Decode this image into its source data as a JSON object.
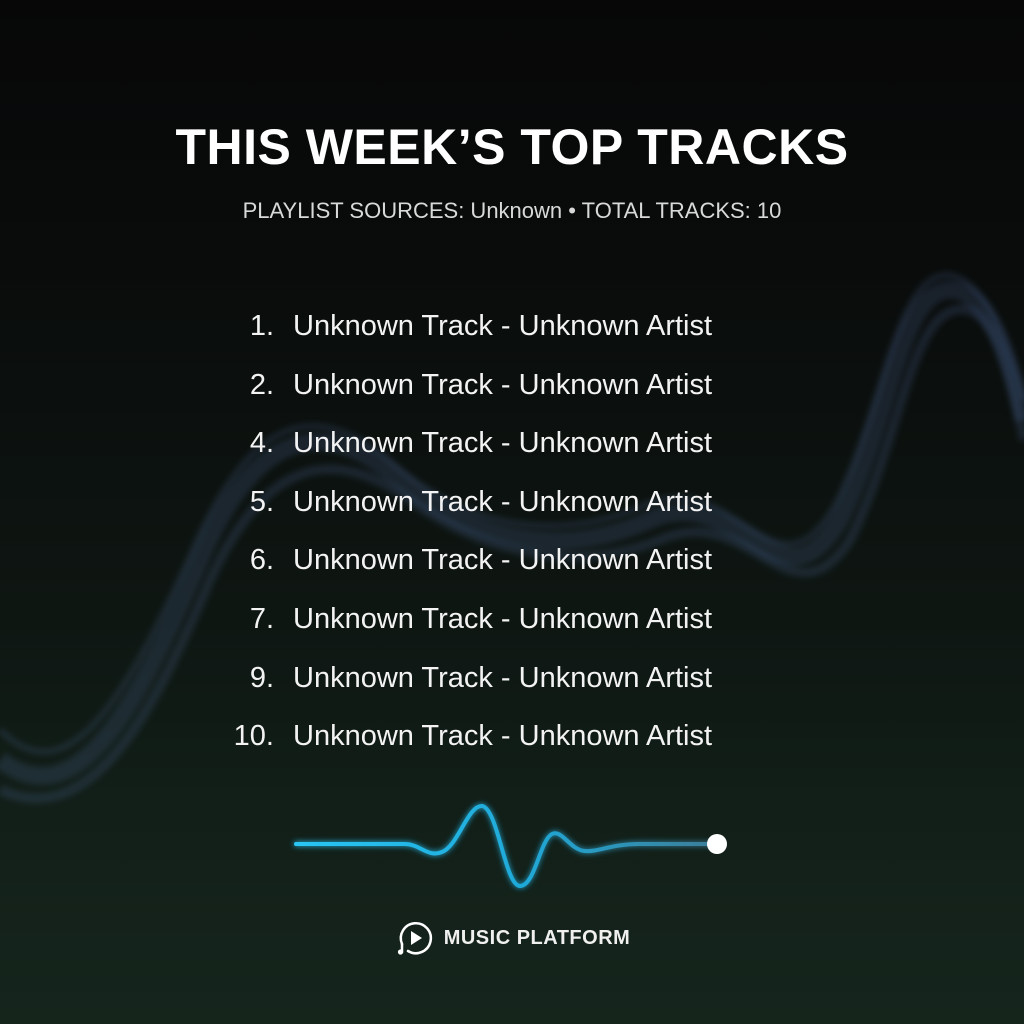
{
  "title": "THIS WEEK’S TOP TRACKS",
  "subtitle": "PLAYLIST SOURCES: Unknown • TOTAL TRACKS: 10",
  "tracks": [
    {
      "number": "1.",
      "name": "Unknown Track - Unknown Artist"
    },
    {
      "number": "2.",
      "name": "Unknown Track - Unknown Artist"
    },
    {
      "number": "4.",
      "name": "Unknown Track - Unknown Artist"
    },
    {
      "number": "5.",
      "name": "Unknown Track - Unknown Artist"
    },
    {
      "number": "6.",
      "name": "Unknown Track - Unknown Artist"
    },
    {
      "number": "7.",
      "name": "Unknown Track - Unknown Artist"
    },
    {
      "number": "9.",
      "name": "Unknown Track - Unknown Artist"
    },
    {
      "number": "10.",
      "name": "Unknown Track - Unknown Artist"
    }
  ],
  "brand": {
    "name": "MUSIC PLATFORM",
    "icon": "play-circle-icon"
  },
  "colors": {
    "accent": "#29c6f5",
    "background": "#0a0d0c",
    "text": "#ffffff"
  }
}
